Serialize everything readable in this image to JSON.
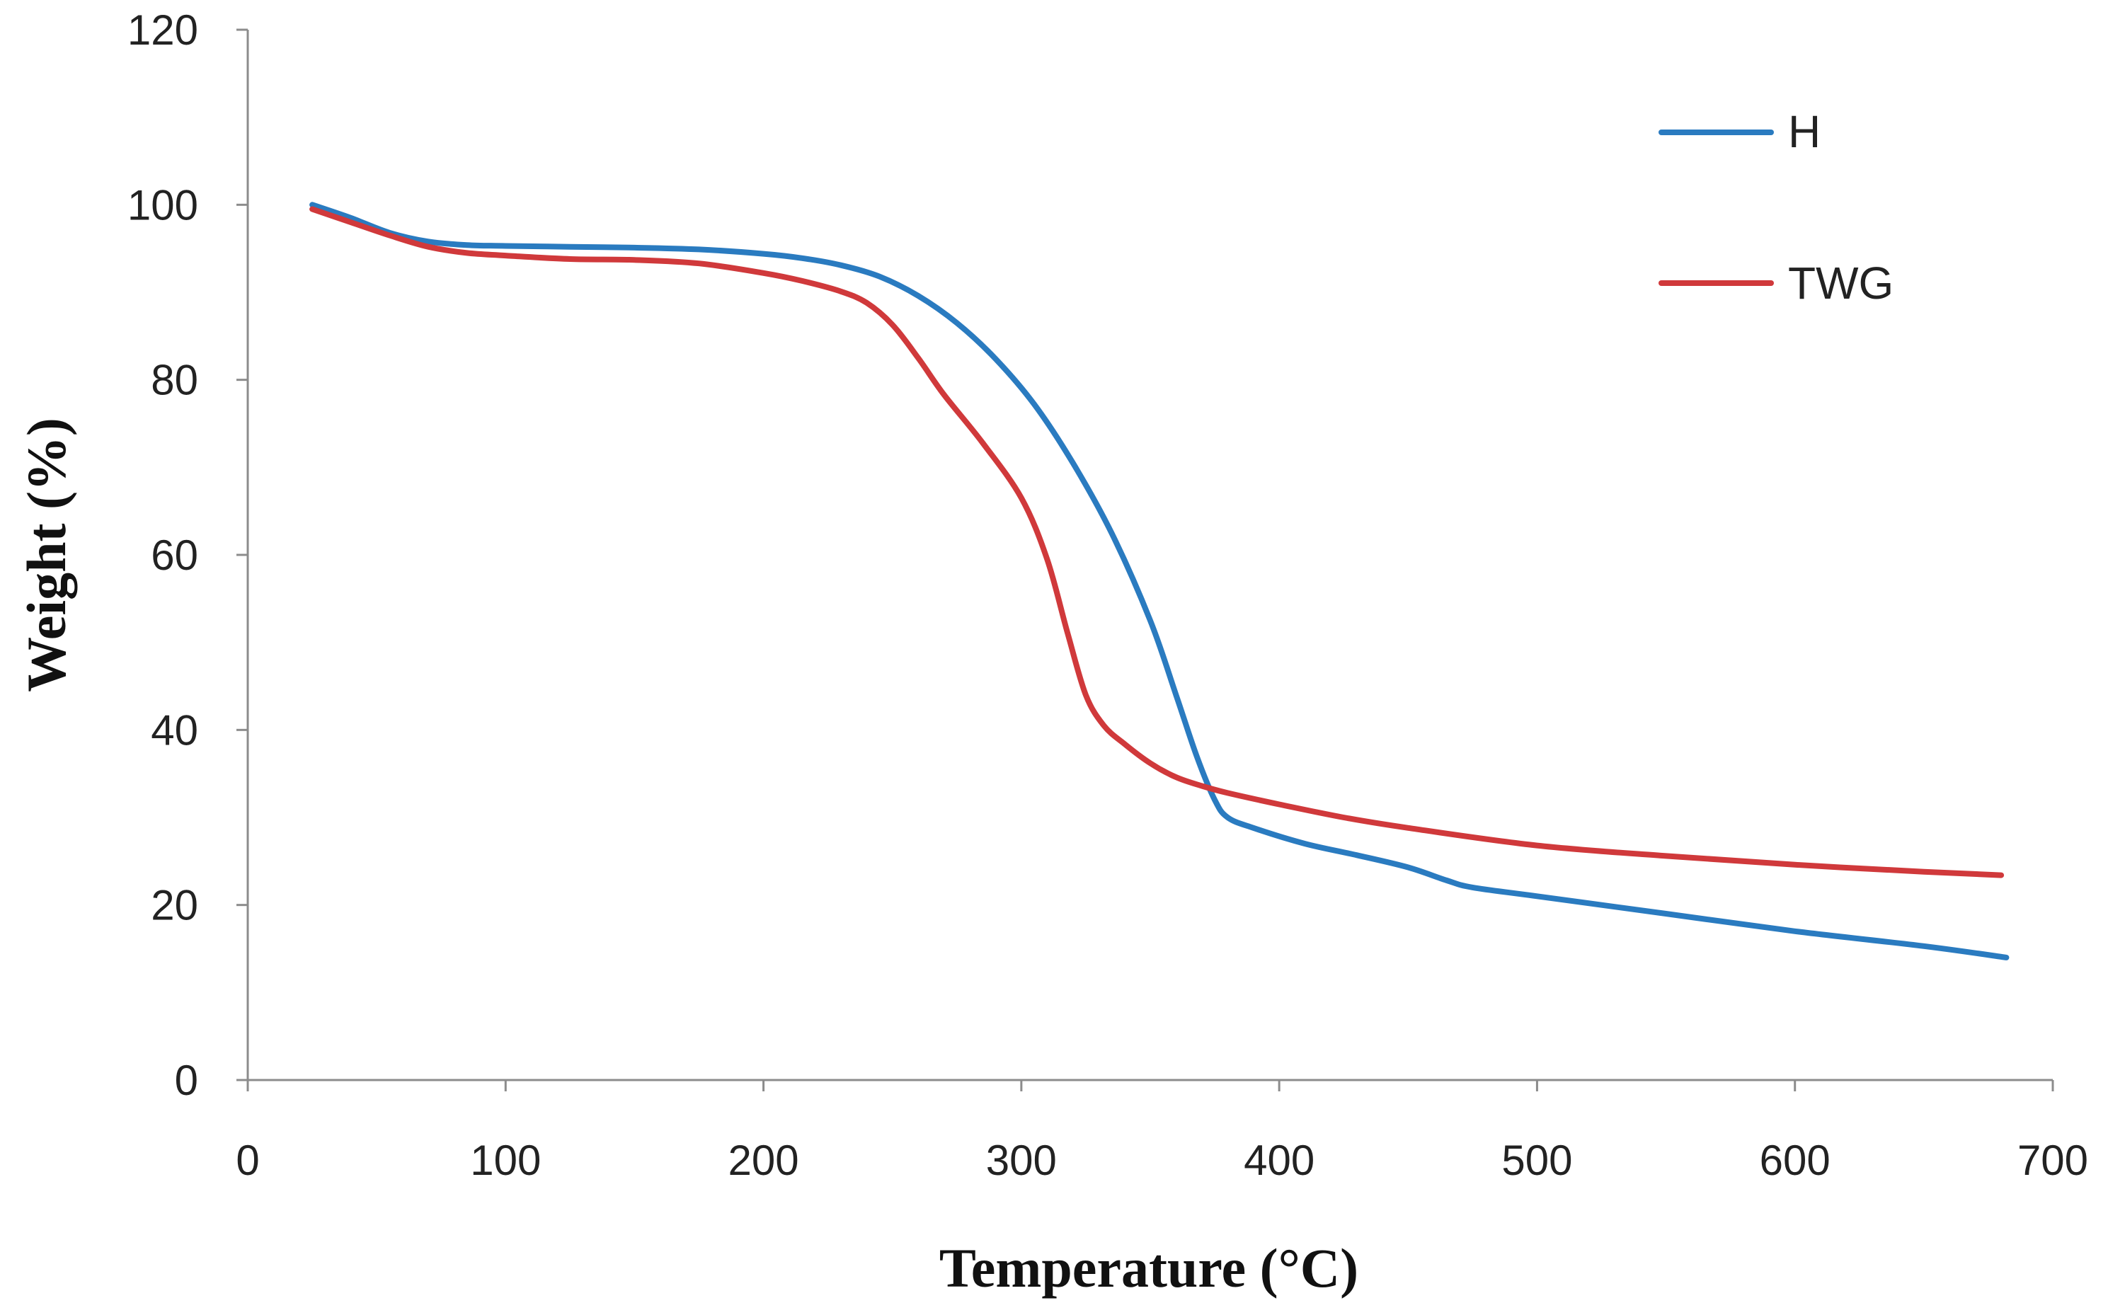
{
  "chart_data": {
    "type": "line",
    "title": "",
    "xlabel": "Temperature (°C)",
    "ylabel": "Weight (%)",
    "xlim": [
      0,
      700
    ],
    "ylim": [
      0,
      120
    ],
    "xticks": [
      0,
      100,
      200,
      300,
      400,
      500,
      600,
      700
    ],
    "yticks": [
      0,
      20,
      40,
      60,
      80,
      100,
      120
    ],
    "grid": false,
    "legend_position": "top-right",
    "series": [
      {
        "name": "H",
        "color": "#2a7bc0",
        "x": [
          25,
          40,
          55,
          70,
          85,
          100,
          125,
          150,
          175,
          200,
          215,
          230,
          245,
          260,
          275,
          290,
          305,
          320,
          335,
          350,
          360,
          368,
          375,
          380,
          390,
          410,
          430,
          450,
          465,
          475,
          500,
          550,
          600,
          650,
          682
        ],
        "y": [
          100,
          98.5,
          96.8,
          95.8,
          95.4,
          95.3,
          95.2,
          95.1,
          94.9,
          94.4,
          93.9,
          93.1,
          91.8,
          89.6,
          86.5,
          82.4,
          77.2,
          70.5,
          62.5,
          52.5,
          44,
          37,
          32,
          30,
          28.8,
          27,
          25.7,
          24.3,
          22.8,
          22,
          21,
          19,
          17,
          15.3,
          14
        ]
      },
      {
        "name": "TWG",
        "color": "#d0393b",
        "x": [
          25,
          40,
          55,
          70,
          85,
          100,
          125,
          150,
          175,
          200,
          215,
          230,
          240,
          250,
          260,
          270,
          285,
          300,
          310,
          318,
          325,
          332,
          340,
          350,
          360,
          370,
          380,
          400,
          425,
          450,
          500,
          550,
          600,
          650,
          680
        ],
        "y": [
          99.5,
          98,
          96.5,
          95.2,
          94.5,
          94.2,
          93.8,
          93.7,
          93.3,
          92.2,
          91.3,
          90.1,
          88.8,
          86.3,
          82.5,
          78.3,
          72.8,
          66.5,
          59.5,
          51,
          44,
          40.5,
          38.4,
          36.2,
          34.6,
          33.6,
          32.8,
          31.5,
          30,
          28.8,
          26.8,
          25.6,
          24.6,
          23.8,
          23.4
        ]
      }
    ]
  }
}
